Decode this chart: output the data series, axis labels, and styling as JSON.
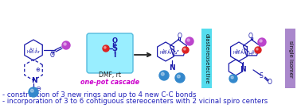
{
  "background_color": "#ffffff",
  "bullet1": "- construction of 3 new rings and up to 4 new C-C bonds",
  "bullet2": "- incorporation of 3 to 6 contiguous stereocenters with 2 vicinal spiro centers",
  "bullet_color": "#2222bb",
  "bullet_fontsize": 6.2,
  "dmf_label": "DMF, rt",
  "cascade_label": "one-pot cascade",
  "cascade_color": "#cc00cc",
  "diastereo_label": "diastereoselective",
  "diastereo_bg": "#55ddee",
  "single_label": "single isomer",
  "single_bg": "#aa88cc",
  "reagent_box_bg": "#99eeff",
  "reagent_box_edge": "#55bbdd",
  "arrow_color": "#222222",
  "sc": "#1a1aaa",
  "ball_purple": "#bb44cc",
  "ball_blue": "#3388cc",
  "ball_red": "#dd2222",
  "figsize": [
    3.78,
    1.41
  ],
  "dpi": 100
}
